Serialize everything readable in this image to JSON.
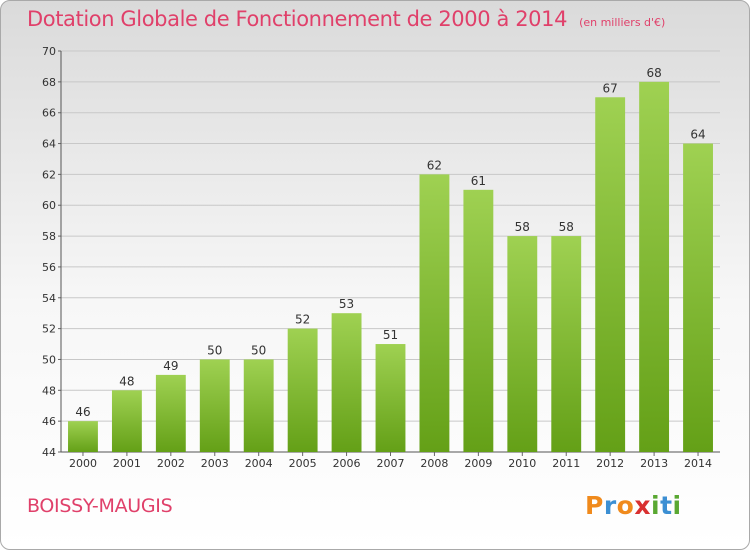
{
  "header": {
    "title": "Dotation Globale de Fonctionnement de 2000 à 2014",
    "subtitle": "(en milliers d'€)"
  },
  "footer": {
    "commune": "BOISSY-MAUGIS",
    "logo_letters": [
      "P",
      "r",
      "o",
      "x",
      "i",
      "t",
      "i"
    ],
    "logo_colors": [
      "#f08a1c",
      "#3c8fd3",
      "#f08a1c",
      "#d93030",
      "#5aa832",
      "#3c8fd3",
      "#5aa832"
    ]
  },
  "colors": {
    "bar_top": "#9fd152",
    "bar_bottom": "#64a017",
    "accent": "#e0406a"
  },
  "chart_data": {
    "type": "bar",
    "title": "Dotation Globale de Fonctionnement de 2000 à 2014",
    "subtitle": "(en milliers d'€)",
    "xlabel": "",
    "ylabel": "",
    "categories": [
      "2000",
      "2001",
      "2002",
      "2003",
      "2004",
      "2005",
      "2006",
      "2007",
      "2008",
      "2009",
      "2010",
      "2011",
      "2012",
      "2013",
      "2014"
    ],
    "values": [
      46,
      48,
      49,
      50,
      50,
      52,
      53,
      51,
      62,
      61,
      58,
      58,
      67,
      68,
      64
    ],
    "ylim": [
      44,
      70
    ],
    "yticks": [
      44,
      46,
      48,
      50,
      52,
      54,
      56,
      58,
      60,
      62,
      64,
      66,
      68,
      70
    ],
    "grid": true,
    "data_labels": true
  }
}
